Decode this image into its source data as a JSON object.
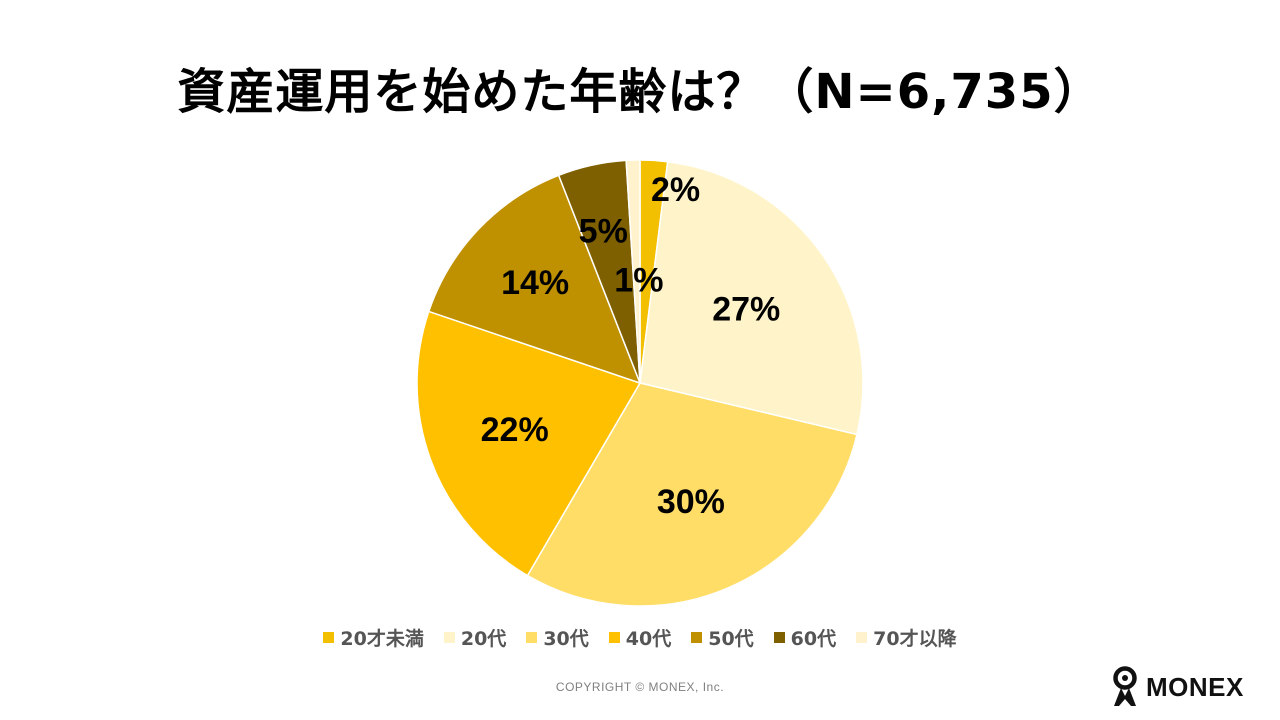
{
  "colors": {
    "under20": "#F2C000",
    "twenties": "#FFF4C9",
    "thirties": "#FFDD66",
    "forties": "#FFC000",
    "fifties": "#BF9000",
    "sixties": "#7F6000",
    "seventies_plus": "#FFF2CC"
  },
  "chart_data": {
    "type": "pie",
    "title": "資産運用を始めた年齢は？（N=6,735）",
    "sample_size": 6735,
    "start_angle_deg": 0,
    "direction": "clockwise",
    "legend_position": "bottom",
    "slices": [
      {
        "name": "20才未満",
        "value": 2,
        "label": "2%",
        "color_key": "under20"
      },
      {
        "name": "20代",
        "value": 27,
        "label": "27%",
        "color_key": "twenties"
      },
      {
        "name": "30代",
        "value": 30,
        "label": "30%",
        "color_key": "thirties"
      },
      {
        "name": "40代",
        "value": 22,
        "label": "22%",
        "color_key": "forties"
      },
      {
        "name": "50代",
        "value": 14,
        "label": "14%",
        "color_key": "fifties"
      },
      {
        "name": "60代",
        "value": 5,
        "label": "5%",
        "color_key": "sixties"
      },
      {
        "name": "70才以降",
        "value": 1,
        "label": "1%",
        "color_key": "seventies_plus"
      }
    ]
  },
  "footer": {
    "copyright": "COPYRIGHT © MONEX, Inc.",
    "brand_name": "MONEX",
    "brand_icon": "monex-logo-icon"
  }
}
